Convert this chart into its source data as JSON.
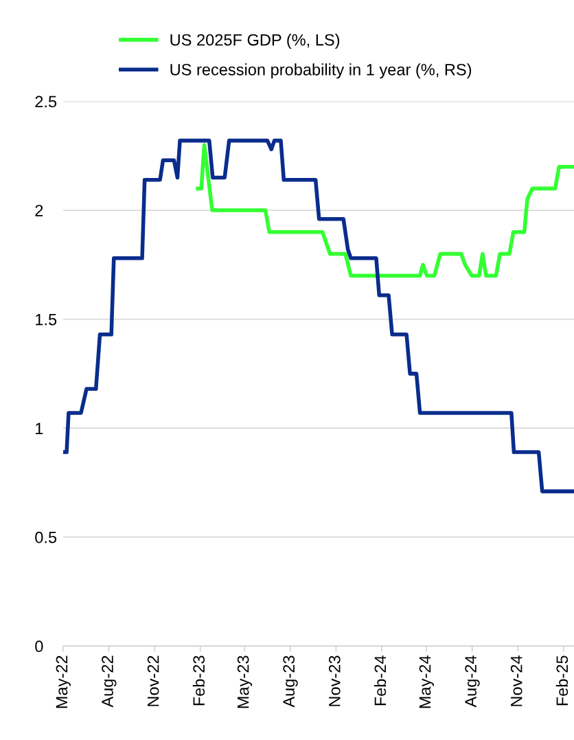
{
  "chart_data": {
    "type": "line",
    "legend": "top",
    "grid": "y",
    "marker": "none",
    "line_style": "solid",
    "xlim": [
      "2022-05-01",
      "2025-02-22"
    ],
    "ylim": [
      0,
      2.5
    ],
    "yticks": [
      0,
      0.5,
      1,
      1.5,
      2,
      2.5
    ],
    "xticks": [
      {
        "value": "2022-05-01",
        "label": "May-22"
      },
      {
        "value": "2022-08-01",
        "label": "Aug-22"
      },
      {
        "value": "2022-11-01",
        "label": "Nov-22"
      },
      {
        "value": "2023-02-01",
        "label": "Feb-23"
      },
      {
        "value": "2023-05-01",
        "label": "May-23"
      },
      {
        "value": "2023-08-01",
        "label": "Aug-23"
      },
      {
        "value": "2023-11-01",
        "label": "Nov-23"
      },
      {
        "value": "2024-02-01",
        "label": "Feb-24"
      },
      {
        "value": "2024-05-01",
        "label": "May-24"
      },
      {
        "value": "2024-08-01",
        "label": "Aug-24"
      },
      {
        "value": "2024-11-01",
        "label": "Nov-24"
      },
      {
        "value": "2025-02-01",
        "label": "Feb-25"
      }
    ],
    "series": [
      {
        "name": "US 2025F GDP (%, LS)",
        "color": "#33ff33",
        "x": [
          "2023-01-27",
          "2023-02-03",
          "2023-02-09",
          "2023-02-25",
          "2023-06-12",
          "2023-06-20",
          "2023-10-05",
          "2023-10-20",
          "2023-11-20",
          "2023-12-01",
          "2024-04-18",
          "2024-04-24",
          "2024-05-02",
          "2024-05-17",
          "2024-05-29",
          "2024-07-10",
          "2024-07-18",
          "2024-07-31",
          "2024-08-15",
          "2024-08-22",
          "2024-08-29",
          "2024-09-18",
          "2024-09-26",
          "2024-10-15",
          "2024-10-23",
          "2024-11-14",
          "2024-11-20",
          "2024-11-30",
          "2025-01-15",
          "2025-01-23",
          "2025-02-22"
        ],
        "values": [
          2.1,
          2.1,
          2.3,
          2.0,
          2.0,
          1.9,
          1.9,
          1.8,
          1.8,
          1.7,
          1.7,
          1.75,
          1.7,
          1.7,
          1.8,
          1.8,
          1.75,
          1.7,
          1.7,
          1.8,
          1.7,
          1.7,
          1.8,
          1.8,
          1.9,
          1.9,
          2.05,
          2.1,
          2.1,
          2.2,
          2.2
        ]
      },
      {
        "name": "US recession probability in 1 year (%, RS)",
        "color": "#0a2d8c",
        "x": [
          "2022-05-01",
          "2022-05-08",
          "2022-05-12",
          "2022-06-06",
          "2022-06-17",
          "2022-07-06",
          "2022-07-14",
          "2022-08-06",
          "2022-08-11",
          "2022-10-07",
          "2022-10-12",
          "2022-11-12",
          "2022-11-18",
          "2022-12-10",
          "2022-12-17",
          "2022-12-22",
          "2023-02-19",
          "2023-02-26",
          "2023-03-22",
          "2023-03-31",
          "2023-06-16",
          "2023-06-24",
          "2023-06-30",
          "2023-07-13",
          "2023-07-19",
          "2023-09-21",
          "2023-09-28",
          "2023-11-16",
          "2023-11-25",
          "2023-12-01",
          "2024-01-21",
          "2024-01-27",
          "2024-02-15",
          "2024-02-22",
          "2024-03-22",
          "2024-03-29",
          "2024-04-11",
          "2024-04-18",
          "2024-10-19",
          "2024-10-24",
          "2024-12-13",
          "2024-12-20",
          "2025-02-22"
        ],
        "values": [
          0.89,
          0.89,
          1.07,
          1.07,
          1.18,
          1.18,
          1.43,
          1.43,
          1.78,
          1.78,
          2.14,
          2.14,
          2.23,
          2.23,
          2.15,
          2.32,
          2.32,
          2.15,
          2.15,
          2.32,
          2.32,
          2.28,
          2.32,
          2.32,
          2.14,
          2.14,
          1.96,
          1.96,
          1.82,
          1.78,
          1.78,
          1.61,
          1.61,
          1.43,
          1.43,
          1.25,
          1.25,
          1.07,
          1.07,
          0.89,
          0.89,
          0.71,
          0.71
        ]
      }
    ]
  }
}
